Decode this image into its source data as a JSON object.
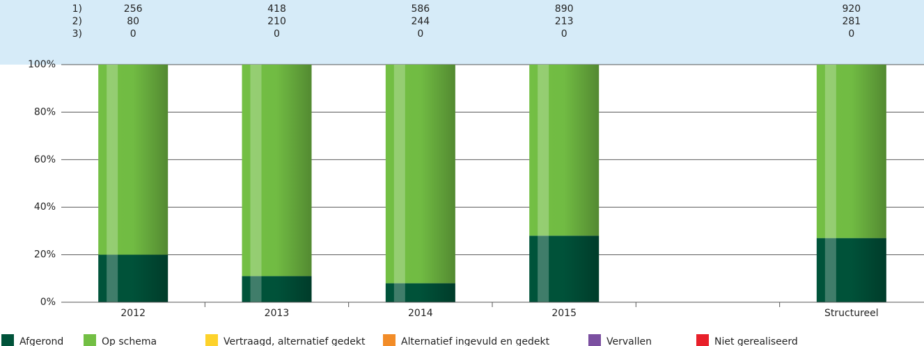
{
  "chart_data": {
    "type": "bar",
    "stacked": true,
    "categories": [
      "2012",
      "2013",
      "2014",
      "2015",
      null,
      "Structureel"
    ],
    "series": [
      {
        "name": "Afgerond",
        "color": "#00533a",
        "values": [
          20,
          11,
          8,
          28,
          null,
          27
        ]
      },
      {
        "name": "Op schema",
        "color": "#73bf44",
        "values": [
          80,
          89,
          92,
          72,
          null,
          73
        ]
      },
      {
        "name": "Vertraagd, alternatief gedekt",
        "color": "#fdd22b",
        "values": [
          0,
          0,
          0,
          0,
          null,
          0
        ]
      },
      {
        "name": "Alternatief ingevuld en gedekt",
        "color": "#f28c28",
        "values": [
          0,
          0,
          0,
          0,
          null,
          0
        ]
      },
      {
        "name": "Vervallen",
        "color": "#7b4fa0",
        "values": [
          0,
          0,
          0,
          0,
          null,
          0
        ]
      },
      {
        "name": "Niet gerealiseerd",
        "color": "#e8202a",
        "values": [
          0,
          0,
          0,
          0,
          null,
          0
        ]
      }
    ],
    "table": [
      {
        "label": "1)",
        "values": [
          256,
          418,
          586,
          890,
          null,
          920
        ]
      },
      {
        "label": "2)",
        "values": [
          80,
          210,
          244,
          213,
          null,
          281
        ]
      },
      {
        "label": "3)",
        "values": [
          0,
          0,
          0,
          0,
          null,
          0
        ]
      }
    ],
    "ylim": [
      0,
      100
    ],
    "yticks": [
      {
        "value": 0,
        "label": "0%"
      },
      {
        "value": 20,
        "label": "20%"
      },
      {
        "value": 40,
        "label": "40%"
      },
      {
        "value": 60,
        "label": "60%"
      },
      {
        "value": 80,
        "label": "80%"
      },
      {
        "value": 100,
        "label": "100%"
      }
    ],
    "grid": true
  }
}
